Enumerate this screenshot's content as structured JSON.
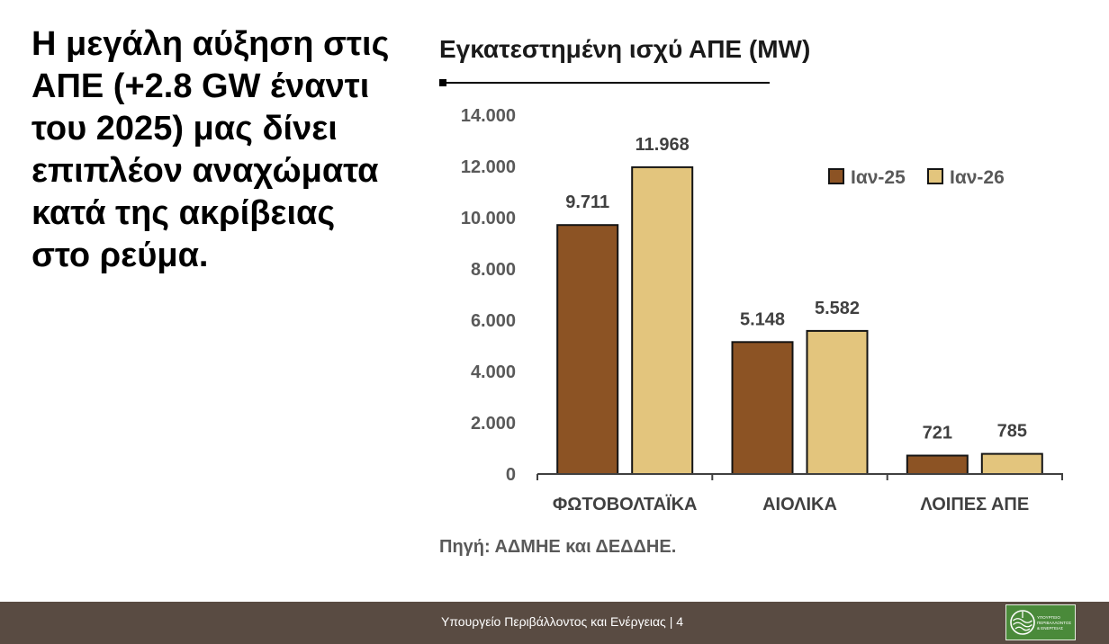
{
  "slide": {
    "headline_lines": [
      "Η μεγάλη αύξηση στις",
      "ΑΠΕ (+2.8 GW έναντι",
      "του 2025) μας δίνει",
      "επιπλέον αναχώματα",
      "κατά της ακρίβειας",
      "στο ρεύμα."
    ]
  },
  "chart_data": {
    "type": "bar",
    "title": "Εγκατεστημένη ισχύ ΑΠΕ (MW)",
    "categories": [
      "ΦΩΤΟΒΟΛΤΑΪΚΑ",
      "ΑΙΟΛΙΚΑ",
      "ΛΟΙΠΕΣ ΑΠΕ"
    ],
    "series": [
      {
        "name": "Ιαν-25",
        "values": [
          9711,
          5148,
          721
        ],
        "data_labels": [
          "9.711",
          "5.148",
          "721"
        ],
        "color": "#8C5324"
      },
      {
        "name": "Ιαν-26",
        "values": [
          11968,
          5582,
          785
        ],
        "data_labels": [
          "11.968",
          "5.582",
          "785"
        ],
        "color": "#E3C57D"
      }
    ],
    "ylim": [
      0,
      14000
    ],
    "yticks": [
      0,
      2000,
      4000,
      6000,
      8000,
      10000,
      12000,
      14000
    ],
    "ytick_labels": [
      "0",
      "2.000",
      "4.000",
      "6.000",
      "8.000",
      "10.000",
      "12.000",
      "14.000"
    ],
    "grid": false,
    "legend": "top-right",
    "source": "Πηγή: ΑΔΜΗΕ και ΔΕΔΔΗΕ."
  },
  "footer": {
    "ministry": "Υπουργείο Περιβάλλοντος και Ενέργειας",
    "separator": "|",
    "page_number": "4",
    "background_color": "#594B42"
  },
  "logo": {
    "icon": "ministry-emblem-icon",
    "text_lines": [
      "ΥΠΟΥΡΓΕΙΟ",
      "ΠΕΡΙΒΑΛΛΟΝΤΟΣ",
      "& ΕΝΕΡΓΕΙΑΣ"
    ],
    "color": "#4A8A3A"
  }
}
